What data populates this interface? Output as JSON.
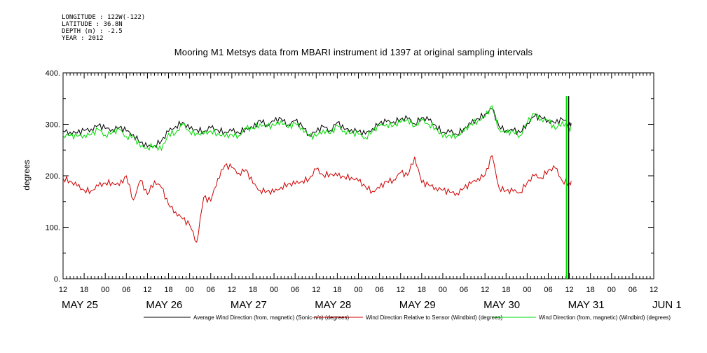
{
  "header": {
    "longitude": "LONGITUDE : 122W(-122)",
    "latitude": "LATITUDE : 36.8N",
    "depth": "DEPTH (m) : -2.5",
    "year": "YEAR : 2012"
  },
  "chart_data": {
    "type": "line",
    "title": "Mooring M1 Metsys data from MBARI instrument id 1397 at original sampling intervals",
    "ylabel": "degrees",
    "xlabel": "",
    "ylim": [
      0,
      400
    ],
    "y_ticks": [
      0,
      100,
      200,
      300,
      400
    ],
    "y_tick_labels": [
      "0.",
      "100.",
      "200.",
      "300.",
      "400."
    ],
    "x_unit": "hours since 2012-05-25 00:00",
    "xlim": [
      12,
      156.5
    ],
    "x_hour_ticks": [
      "12",
      "18",
      "00",
      "06",
      "12",
      "18",
      "00",
      "06",
      "12",
      "18",
      "00",
      "06",
      "12",
      "18",
      "00",
      "06",
      "12",
      "18",
      "00",
      "06",
      "12",
      "18",
      "00",
      "06",
      "12",
      "18",
      "00",
      "06",
      "12"
    ],
    "x_day_labels": [
      {
        "label": "MAY 25",
        "hour": 12
      },
      {
        "label": "MAY 26",
        "hour": 36
      },
      {
        "label": "MAY 27",
        "hour": 60
      },
      {
        "label": "MAY 28",
        "hour": 84
      },
      {
        "label": "MAY 29",
        "hour": 108
      },
      {
        "label": "MAY 30",
        "hour": 132
      },
      {
        "label": "MAY 31",
        "hour": 156
      },
      {
        "label": "JUN  1",
        "hour": 180
      }
    ],
    "legend_placement": "bottom",
    "series": [
      {
        "name": "Average Wind Direction (from, magnetic) (Sonic-n/a) (degrees)",
        "color": "#000000",
        "points": [
          [
            12,
            287
          ],
          [
            14,
            285
          ],
          [
            16,
            283
          ],
          [
            18,
            288
          ],
          [
            20,
            291
          ],
          [
            22,
            298
          ],
          [
            24,
            292
          ],
          [
            26,
            290
          ],
          [
            28,
            294
          ],
          [
            30,
            287
          ],
          [
            32,
            280
          ],
          [
            34,
            265
          ],
          [
            36,
            256
          ],
          [
            38,
            259
          ],
          [
            40,
            268
          ],
          [
            42,
            286
          ],
          [
            44,
            296
          ],
          [
            46,
            304
          ],
          [
            48,
            291
          ],
          [
            50,
            290
          ],
          [
            52,
            286
          ],
          [
            54,
            293
          ],
          [
            56,
            289
          ],
          [
            58,
            285
          ],
          [
            60,
            287
          ],
          [
            62,
            283
          ],
          [
            64,
            293
          ],
          [
            66,
            292
          ],
          [
            68,
            308
          ],
          [
            70,
            299
          ],
          [
            72,
            306
          ],
          [
            74,
            311
          ],
          [
            76,
            299
          ],
          [
            78,
            307
          ],
          [
            80,
            296
          ],
          [
            82,
            280
          ],
          [
            84,
            285
          ],
          [
            86,
            296
          ],
          [
            88,
            288
          ],
          [
            90,
            304
          ],
          [
            92,
            290
          ],
          [
            94,
            290
          ],
          [
            96,
            286
          ],
          [
            98,
            281
          ],
          [
            100,
            292
          ],
          [
            102,
            302
          ],
          [
            104,
            305
          ],
          [
            106,
            305
          ],
          [
            108,
            310
          ],
          [
            110,
            311
          ],
          [
            112,
            301
          ],
          [
            114,
            313
          ],
          [
            116,
            308
          ],
          [
            118,
            298
          ],
          [
            120,
            284
          ],
          [
            122,
            285
          ],
          [
            124,
            280
          ],
          [
            126,
            292
          ],
          [
            128,
            301
          ],
          [
            130,
            311
          ],
          [
            132,
            320
          ],
          [
            134,
            330
          ],
          [
            136,
            296
          ],
          [
            138,
            288
          ],
          [
            140,
            288
          ],
          [
            142,
            284
          ],
          [
            144,
            302
          ],
          [
            146,
            315
          ],
          [
            148,
            313
          ],
          [
            150,
            308
          ],
          [
            152,
            302
          ],
          [
            154,
            310
          ],
          [
            156,
            300
          ],
          [
            156.5,
            302
          ]
        ]
      },
      {
        "name": "Wind Direction Relative to Sensor (Windbird) (degrees)",
        "color": "#d00000",
        "points": [
          [
            12,
            195
          ],
          [
            14,
            190
          ],
          [
            16,
            180
          ],
          [
            18,
            172
          ],
          [
            20,
            171
          ],
          [
            22,
            180
          ],
          [
            24,
            186
          ],
          [
            26,
            187
          ],
          [
            28,
            181
          ],
          [
            30,
            200
          ],
          [
            32,
            153
          ],
          [
            34,
            191
          ],
          [
            36,
            164
          ],
          [
            38,
            190
          ],
          [
            40,
            177
          ],
          [
            42,
            144
          ],
          [
            44,
            130
          ],
          [
            46,
            116
          ],
          [
            48,
            105
          ],
          [
            50,
            71
          ],
          [
            52,
            158
          ],
          [
            54,
            151
          ],
          [
            56,
            195
          ],
          [
            58,
            220
          ],
          [
            60,
            216
          ],
          [
            62,
            205
          ],
          [
            64,
            212
          ],
          [
            66,
            185
          ],
          [
            68,
            172
          ],
          [
            70,
            170
          ],
          [
            72,
            168
          ],
          [
            74,
            178
          ],
          [
            76,
            184
          ],
          [
            78,
            184
          ],
          [
            80,
            190
          ],
          [
            82,
            194
          ],
          [
            84,
            213
          ],
          [
            86,
            201
          ],
          [
            88,
            204
          ],
          [
            90,
            200
          ],
          [
            92,
            198
          ],
          [
            94,
            197
          ],
          [
            96,
            190
          ],
          [
            98,
            179
          ],
          [
            100,
            170
          ],
          [
            102,
            176
          ],
          [
            104,
            189
          ],
          [
            106,
            192
          ],
          [
            108,
            206
          ],
          [
            110,
            201
          ],
          [
            112,
            237
          ],
          [
            114,
            187
          ],
          [
            116,
            182
          ],
          [
            118,
            177
          ],
          [
            120,
            172
          ],
          [
            122,
            168
          ],
          [
            124,
            166
          ],
          [
            126,
            176
          ],
          [
            128,
            185
          ],
          [
            130,
            195
          ],
          [
            132,
            201
          ],
          [
            134,
            239
          ],
          [
            136,
            177
          ],
          [
            138,
            171
          ],
          [
            140,
            170
          ],
          [
            142,
            168
          ],
          [
            144,
            187
          ],
          [
            146,
            200
          ],
          [
            148,
            196
          ],
          [
            150,
            211
          ],
          [
            152,
            215
          ],
          [
            154,
            190
          ],
          [
            156,
            186
          ],
          [
            156.5,
            190
          ]
        ]
      },
      {
        "name": "Wind Direction (from, magnetic) (Windbird) (degrees)",
        "color": "#00dd00",
        "points": [
          [
            12,
            279
          ],
          [
            14,
            278
          ],
          [
            16,
            277
          ],
          [
            18,
            279
          ],
          [
            20,
            280
          ],
          [
            22,
            290
          ],
          [
            24,
            279
          ],
          [
            26,
            284
          ],
          [
            28,
            290
          ],
          [
            30,
            276
          ],
          [
            32,
            277
          ],
          [
            34,
            256
          ],
          [
            36,
            255
          ],
          [
            38,
            259
          ],
          [
            40,
            250
          ],
          [
            42,
            282
          ],
          [
            44,
            283
          ],
          [
            46,
            300
          ],
          [
            48,
            286
          ],
          [
            50,
            282
          ],
          [
            52,
            281
          ],
          [
            54,
            287
          ],
          [
            56,
            282
          ],
          [
            58,
            276
          ],
          [
            60,
            280
          ],
          [
            62,
            278
          ],
          [
            64,
            292
          ],
          [
            66,
            292
          ],
          [
            68,
            301
          ],
          [
            70,
            295
          ],
          [
            72,
            298
          ],
          [
            74,
            307
          ],
          [
            76,
            293
          ],
          [
            78,
            302
          ],
          [
            80,
            293
          ],
          [
            82,
            277
          ],
          [
            84,
            277
          ],
          [
            86,
            289
          ],
          [
            88,
            282
          ],
          [
            90,
            297
          ],
          [
            92,
            287
          ],
          [
            94,
            283
          ],
          [
            96,
            281
          ],
          [
            98,
            274
          ],
          [
            100,
            287
          ],
          [
            102,
            297
          ],
          [
            104,
            300
          ],
          [
            106,
            298
          ],
          [
            108,
            304
          ],
          [
            110,
            310
          ],
          [
            112,
            296
          ],
          [
            114,
            308
          ],
          [
            116,
            300
          ],
          [
            118,
            293
          ],
          [
            120,
            275
          ],
          [
            122,
            279
          ],
          [
            124,
            277
          ],
          [
            126,
            286
          ],
          [
            128,
            301
          ],
          [
            130,
            307
          ],
          [
            132,
            314
          ],
          [
            134,
            336
          ],
          [
            136,
            290
          ],
          [
            138,
            283
          ],
          [
            140,
            286
          ],
          [
            142,
            278
          ],
          [
            144,
            303
          ],
          [
            146,
            321
          ],
          [
            148,
            310
          ],
          [
            150,
            308
          ],
          [
            152,
            290
          ],
          [
            154,
            305
          ],
          [
            156,
            292
          ],
          [
            156.5,
            295
          ]
        ]
      }
    ]
  }
}
